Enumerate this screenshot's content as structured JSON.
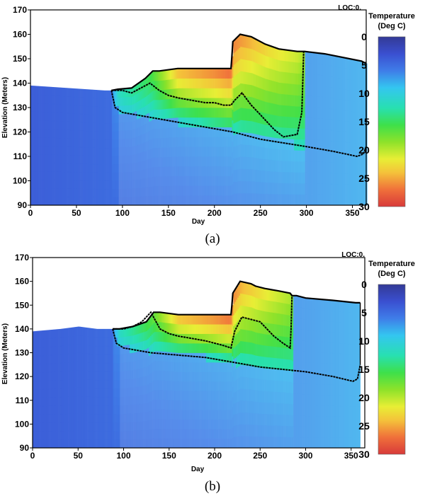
{
  "chart_data": [
    {
      "type": "heatmap",
      "panel_label": "(a)",
      "location_label": "LOC:0.",
      "xlabel": "Day",
      "ylabel": "Elevation (Meters)",
      "xlim": [
        0,
        365
      ],
      "ylim": [
        90,
        170
      ],
      "xticks": [
        0,
        50,
        100,
        150,
        200,
        250,
        300,
        350
      ],
      "yticks": [
        90,
        100,
        110,
        120,
        130,
        140,
        150,
        160,
        170
      ],
      "colorbar": {
        "title_line1": "Temperature",
        "title_line2": "(Deg C)",
        "range": [
          0,
          30
        ],
        "ticks": [
          0,
          5,
          10,
          15,
          20,
          25,
          30
        ]
      },
      "water_surface": [
        [
          0,
          139
        ],
        [
          80,
          137
        ],
        [
          88,
          137
        ],
        [
          95,
          137.5
        ],
        [
          110,
          138
        ],
        [
          125,
          142
        ],
        [
          133,
          145
        ],
        [
          140,
          145
        ],
        [
          160,
          146
        ],
        [
          200,
          146
        ],
        [
          218,
          146
        ],
        [
          219,
          151
        ],
        [
          220,
          157
        ],
        [
          228,
          160
        ],
        [
          240,
          159
        ],
        [
          245,
          158
        ],
        [
          255,
          156
        ],
        [
          270,
          154
        ],
        [
          290,
          153
        ],
        [
          295,
          153
        ],
        [
          298,
          153
        ],
        [
          320,
          152
        ],
        [
          360,
          149
        ],
        [
          365,
          148
        ]
      ],
      "thermocline": [
        [
          88,
          137
        ],
        [
          100,
          137
        ],
        [
          110,
          136
        ],
        [
          120,
          138
        ],
        [
          130,
          140
        ],
        [
          140,
          137
        ],
        [
          150,
          135
        ],
        [
          160,
          134
        ],
        [
          175,
          133
        ],
        [
          190,
          132
        ],
        [
          200,
          132
        ],
        [
          210,
          131
        ],
        [
          218,
          131
        ],
        [
          222,
          133
        ],
        [
          230,
          136
        ],
        [
          240,
          131
        ],
        [
          250,
          127
        ],
        [
          265,
          121
        ],
        [
          275,
          118
        ],
        [
          290,
          119
        ],
        [
          295,
          128
        ],
        [
          296,
          140
        ],
        [
          297,
          153
        ]
      ],
      "hypolimnion_top": [
        [
          88,
          137
        ],
        [
          92,
          130
        ],
        [
          100,
          128
        ],
        [
          130,
          126
        ],
        [
          160,
          124
        ],
        [
          190,
          122
        ],
        [
          220,
          120
        ],
        [
          250,
          117
        ],
        [
          300,
          114
        ],
        [
          330,
          112
        ],
        [
          355,
          110
        ],
        [
          362,
          111
        ],
        [
          365,
          114
        ]
      ],
      "surface_temperature": [
        [
          0,
          4
        ],
        [
          88,
          5
        ],
        [
          95,
          12
        ],
        [
          130,
          16
        ],
        [
          160,
          25
        ],
        [
          200,
          27
        ],
        [
          215,
          28
        ],
        [
          220,
          27
        ],
        [
          230,
          26
        ],
        [
          260,
          23
        ],
        [
          290,
          21
        ],
        [
          300,
          19
        ],
        [
          340,
          17
        ],
        [
          365,
          15
        ]
      ],
      "bottom_temperature": [
        [
          0,
          4
        ],
        [
          100,
          5
        ],
        [
          200,
          6
        ],
        [
          300,
          7
        ],
        [
          365,
          8
        ]
      ]
    },
    {
      "type": "heatmap",
      "panel_label": "(b)",
      "location_label": "LOC:0.",
      "xlabel": "Day",
      "ylabel": "Elevation (Meters)",
      "xlim": [
        0,
        365
      ],
      "ylim": [
        90,
        170
      ],
      "xticks": [
        0,
        50,
        100,
        150,
        200,
        250,
        300,
        350
      ],
      "yticks": [
        90,
        100,
        110,
        120,
        130,
        140,
        150,
        160,
        170
      ],
      "colorbar": {
        "title_line1": "Temperature",
        "title_line2": "(Deg C)",
        "range": [
          0,
          30
        ],
        "ticks": [
          0,
          5,
          10,
          15,
          20,
          25,
          30
        ]
      },
      "water_surface": [
        [
          0,
          139
        ],
        [
          30,
          140
        ],
        [
          50,
          141
        ],
        [
          70,
          140
        ],
        [
          88,
          140
        ],
        [
          95,
          140
        ],
        [
          110,
          141
        ],
        [
          125,
          143
        ],
        [
          133,
          147
        ],
        [
          140,
          147
        ],
        [
          160,
          146
        ],
        [
          200,
          146
        ],
        [
          218,
          146
        ],
        [
          219,
          150
        ],
        [
          220,
          155
        ],
        [
          228,
          160
        ],
        [
          240,
          159
        ],
        [
          245,
          158
        ],
        [
          255,
          157
        ],
        [
          270,
          156
        ],
        [
          283,
          155
        ],
        [
          285,
          154
        ],
        [
          290,
          154
        ],
        [
          300,
          153
        ],
        [
          330,
          152
        ],
        [
          355,
          151
        ],
        [
          360,
          151
        ]
      ],
      "thermocline": [
        [
          88,
          140
        ],
        [
          100,
          140
        ],
        [
          110,
          141
        ],
        [
          120,
          143
        ],
        [
          130,
          147
        ],
        [
          140,
          140
        ],
        [
          150,
          138
        ],
        [
          160,
          137
        ],
        [
          175,
          136
        ],
        [
          190,
          135
        ],
        [
          200,
          134
        ],
        [
          210,
          133
        ],
        [
          218,
          132
        ],
        [
          222,
          139
        ],
        [
          230,
          145
        ],
        [
          240,
          144
        ],
        [
          250,
          143
        ],
        [
          265,
          137
        ],
        [
          275,
          134
        ],
        [
          283,
          132
        ],
        [
          284,
          140
        ],
        [
          285,
          154
        ]
      ],
      "hypolimnion_top": [
        [
          88,
          140
        ],
        [
          92,
          134
        ],
        [
          100,
          132
        ],
        [
          130,
          130
        ],
        [
          160,
          129
        ],
        [
          190,
          128
        ],
        [
          220,
          126
        ],
        [
          250,
          124
        ],
        [
          300,
          122
        ],
        [
          330,
          120
        ],
        [
          352,
          118
        ],
        [
          357,
          119
        ],
        [
          360,
          125
        ]
      ],
      "surface_temperature": [
        [
          0,
          4
        ],
        [
          88,
          5
        ],
        [
          95,
          12
        ],
        [
          130,
          17
        ],
        [
          160,
          25
        ],
        [
          200,
          27
        ],
        [
          215,
          28
        ],
        [
          220,
          27
        ],
        [
          230,
          25
        ],
        [
          260,
          22
        ],
        [
          283,
          20
        ],
        [
          290,
          14
        ],
        [
          330,
          11
        ],
        [
          360,
          9
        ]
      ],
      "bottom_temperature": [
        [
          0,
          4
        ],
        [
          100,
          5
        ],
        [
          200,
          6
        ],
        [
          300,
          7
        ],
        [
          360,
          8
        ]
      ]
    }
  ]
}
